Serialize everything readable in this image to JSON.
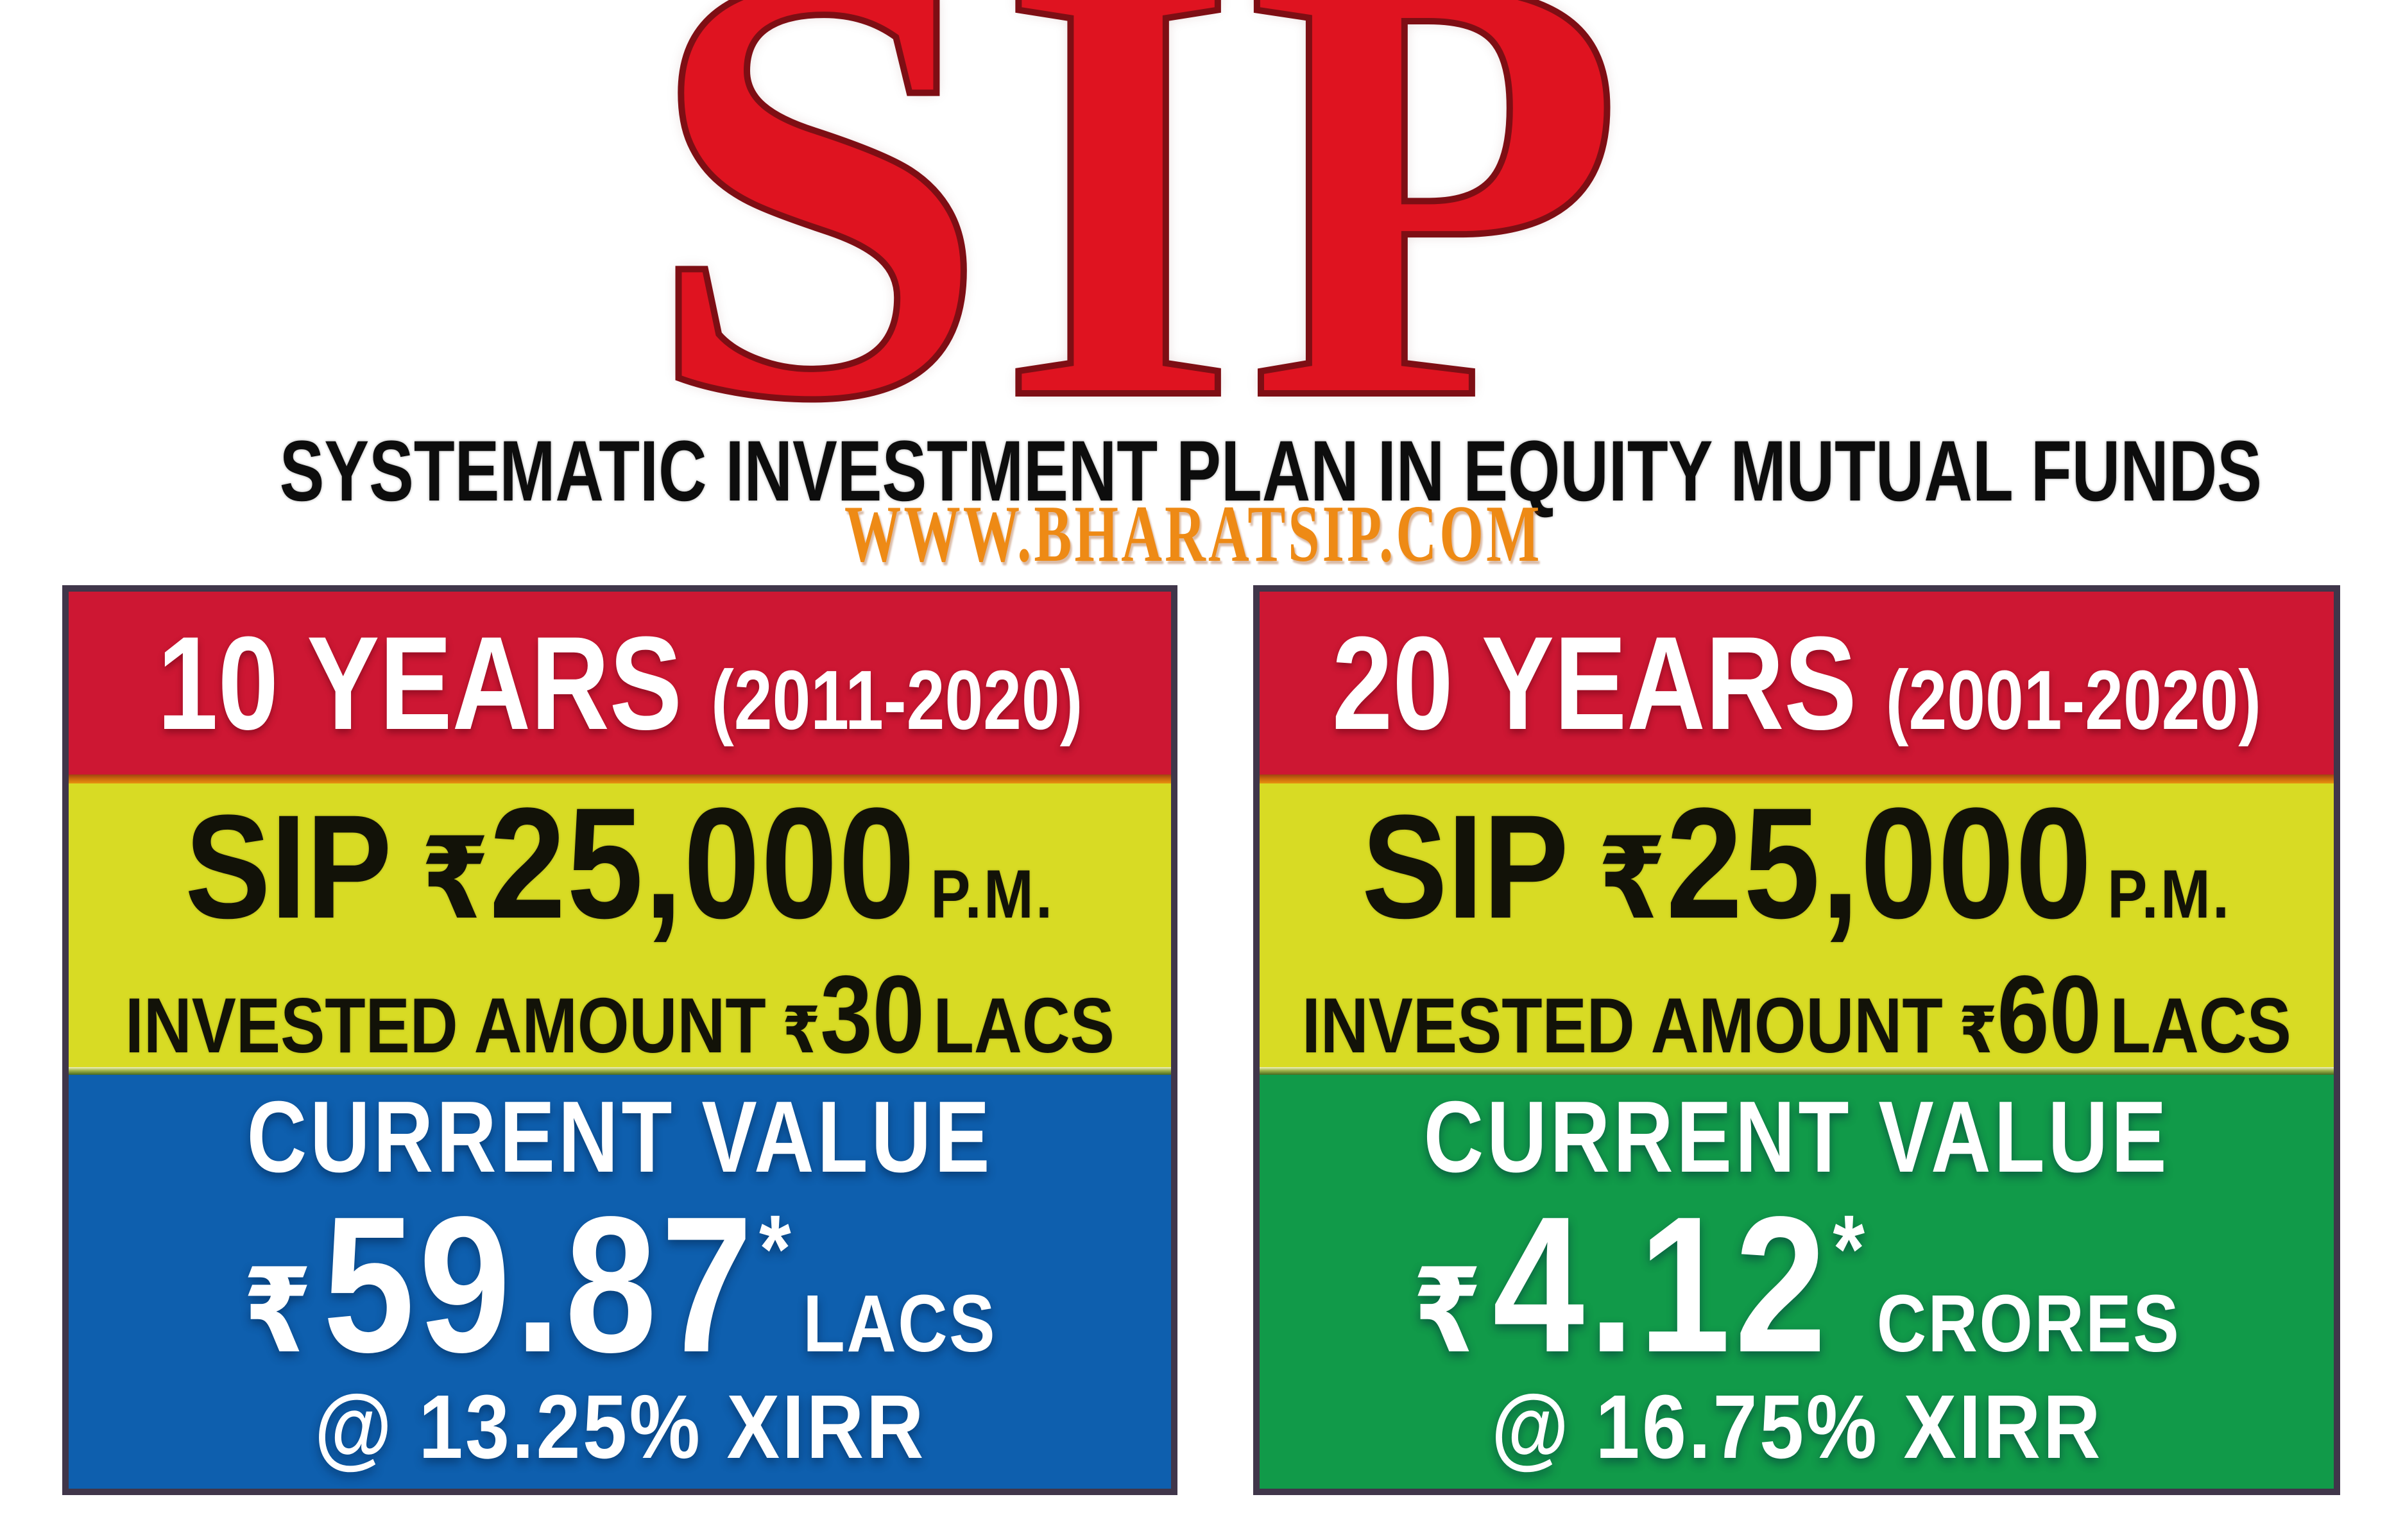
{
  "header": {
    "title": "SIP",
    "subtitle": "SYSTEMATIC INVESTMENT PLAN IN EQUITY MUTUAL FUNDS",
    "watermark": "WWW.BHARATSIP.COM"
  },
  "colors": {
    "title_red": "#df1320",
    "header_band_red": "#cd1733",
    "amount_band_yellow": "#d8db24",
    "value_band_blue": "#0e5fae",
    "value_band_green": "#119a49",
    "divider_orange": "#d97a06",
    "watermark_orange": "#ee8a15",
    "card_border": "#40364a"
  },
  "cards": [
    {
      "id": "10-years",
      "period": "10 YEARS",
      "year_range": "(2011-2020)",
      "sip_label": "SIP",
      "currency": "₹",
      "sip_amount": "25,000",
      "sip_frequency": "P.M.",
      "invested_label": "INVESTED AMOUNT",
      "invested_amount": "30",
      "invested_unit": "LACS",
      "current_value_label": "CURRENT VALUE",
      "current_value": "59.87",
      "footnote_marker": "*",
      "current_value_unit": "LACS",
      "xirr_line": "@ 13.25% XIRR",
      "value_band_color": "#0e5fae"
    },
    {
      "id": "20-years",
      "period": "20 YEARS",
      "year_range": "(2001-2020)",
      "sip_label": "SIP",
      "currency": "₹",
      "sip_amount": "25,000",
      "sip_frequency": "P.M.",
      "invested_label": "INVESTED AMOUNT",
      "invested_amount": "60",
      "invested_unit": "LACS",
      "current_value_label": "CURRENT VALUE",
      "current_value": "4.12",
      "footnote_marker": "*",
      "current_value_unit": "CRORES",
      "xirr_line": "@ 16.75% XIRR",
      "value_band_color": "#119a49"
    }
  ]
}
